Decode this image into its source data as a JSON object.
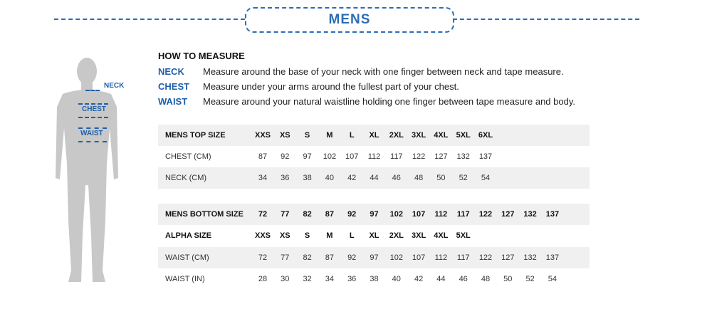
{
  "title": "MENS",
  "figure": {
    "neck": "NECK",
    "chest": "CHEST",
    "waist": "WAIST"
  },
  "how_to": {
    "heading": "HOW TO MEASURE",
    "items": [
      {
        "key": "NECK",
        "text": "Measure around the base of your neck with one finger between neck and tape measure."
      },
      {
        "key": "CHEST",
        "text": "Measure under your arms around the fullest part of your chest."
      },
      {
        "key": "WAIST",
        "text": "Measure around your natural waistline holding one finger between tape measure and body."
      }
    ]
  },
  "top_table": {
    "rows": [
      {
        "label": "MENS TOP SIZE",
        "cells": [
          "XXS",
          "XS",
          "S",
          "M",
          "L",
          "XL",
          "2XL",
          "3XL",
          "4XL",
          "5XL",
          "6XL"
        ]
      },
      {
        "label": "CHEST (CM)",
        "cells": [
          "87",
          "92",
          "97",
          "102",
          "107",
          "112",
          "117",
          "122",
          "127",
          "132",
          "137"
        ]
      },
      {
        "label": "NECK (CM)",
        "cells": [
          "34",
          "36",
          "38",
          "40",
          "42",
          "44",
          "46",
          "48",
          "50",
          "52",
          "54"
        ]
      }
    ]
  },
  "bottom_table": {
    "rows": [
      {
        "label": "MENS BOTTOM  SIZE",
        "cells": [
          "72",
          "77",
          "82",
          "87",
          "92",
          "97",
          "102",
          "107",
          "112",
          "117",
          "122",
          "127",
          "132",
          "137"
        ]
      },
      {
        "label": "ALPHA SIZE",
        "cells": [
          "XXS",
          "XS",
          "S",
          "M",
          "L",
          "XL",
          "2XL",
          "3XL",
          "4XL",
          "5XL"
        ]
      },
      {
        "label": "WAIST (CM)",
        "cells": [
          "72",
          "77",
          "82",
          "87",
          "92",
          "97",
          "102",
          "107",
          "112",
          "117",
          "122",
          "127",
          "132",
          "137"
        ]
      },
      {
        "label": "WAIST (IN)",
        "cells": [
          "28",
          "30",
          "32",
          "34",
          "36",
          "38",
          "40",
          "42",
          "44",
          "46",
          "48",
          "50",
          "52",
          "54"
        ]
      }
    ]
  },
  "colors": {
    "accent": "#2d6cb4",
    "silhouette": "#c8c8c8",
    "row_shade": "#f0f0f0"
  }
}
